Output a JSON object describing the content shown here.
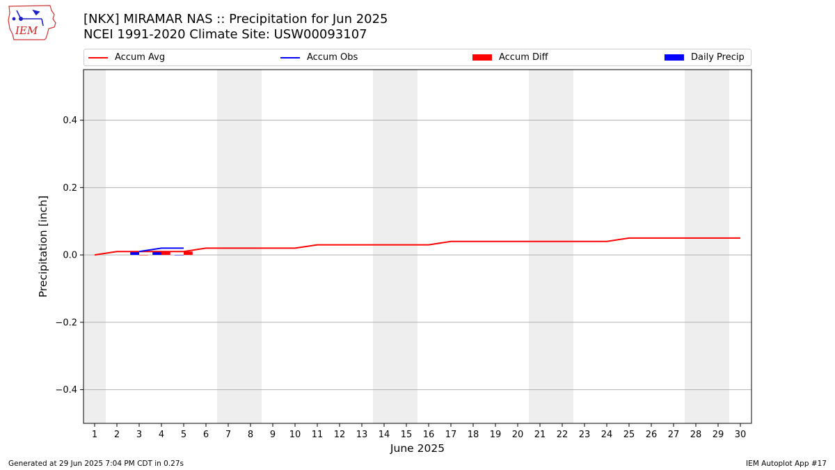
{
  "header": {
    "logo_text": "IEM",
    "title_line1": "[NKX] MIRAMAR NAS :: Precipitation for Jun 2025",
    "title_line2": "NCEI 1991-2020 Climate Site: USW00093107"
  },
  "footer": {
    "left": "Generated at 29 Jun 2025 7:04 PM CDT in 0.27s",
    "right": "IEM Autoplot App #17"
  },
  "colors": {
    "accum_avg": "#ff0000",
    "accum_obs": "#0000ff",
    "accum_diff": "#ff0000",
    "daily_precip": "#0000ff",
    "weekend_shade": "#eeeeee",
    "grid": "#b0b0b0"
  },
  "chart_data": {
    "type": "line",
    "xlabel": "June 2025",
    "ylabel": "Precipitation [inch]",
    "xlim": [
      0.5,
      30.5
    ],
    "ylim": [
      -0.5,
      0.55
    ],
    "x_ticks": [
      1,
      2,
      3,
      4,
      5,
      6,
      7,
      8,
      9,
      10,
      11,
      12,
      13,
      14,
      15,
      16,
      17,
      18,
      19,
      20,
      21,
      22,
      23,
      24,
      25,
      26,
      27,
      28,
      29,
      30
    ],
    "y_ticks": [
      -0.4,
      -0.2,
      0.0,
      0.2,
      0.4
    ],
    "y_tick_labels": [
      "−0.4",
      "−0.2",
      "0.0",
      "0.2",
      "0.4"
    ],
    "grid": "horizontal",
    "legend_position": "top",
    "legend": [
      "Accum Avg",
      "Accum Obs",
      "Accum Diff",
      "Daily Precip"
    ],
    "weekend_spans": [
      [
        1,
        1
      ],
      [
        7,
        8
      ],
      [
        14,
        15
      ],
      [
        21,
        22
      ],
      [
        28,
        29
      ]
    ],
    "series": [
      {
        "name": "Accum Avg",
        "kind": "line",
        "x": [
          1,
          2,
          3,
          4,
          5,
          6,
          7,
          8,
          9,
          10,
          11,
          12,
          13,
          14,
          15,
          16,
          17,
          18,
          19,
          20,
          21,
          22,
          23,
          24,
          25,
          26,
          27,
          28,
          29,
          30
        ],
        "y": [
          0.0,
          0.01,
          0.01,
          0.01,
          0.01,
          0.02,
          0.02,
          0.02,
          0.02,
          0.02,
          0.03,
          0.03,
          0.03,
          0.03,
          0.03,
          0.03,
          0.04,
          0.04,
          0.04,
          0.04,
          0.04,
          0.04,
          0.04,
          0.04,
          0.05,
          0.05,
          0.05,
          0.05,
          0.05,
          0.05
        ]
      },
      {
        "name": "Accum Obs",
        "kind": "line",
        "x": [
          3,
          4,
          5
        ],
        "y": [
          0.01,
          0.02,
          0.02
        ]
      },
      {
        "name": "Accum Diff",
        "kind": "bar",
        "x": [
          3,
          4,
          5
        ],
        "y": [
          0.0,
          0.01,
          0.01
        ]
      },
      {
        "name": "Daily Precip",
        "kind": "bar",
        "x": [
          3,
          4,
          5
        ],
        "y": [
          0.01,
          0.01,
          0.0
        ]
      }
    ]
  }
}
